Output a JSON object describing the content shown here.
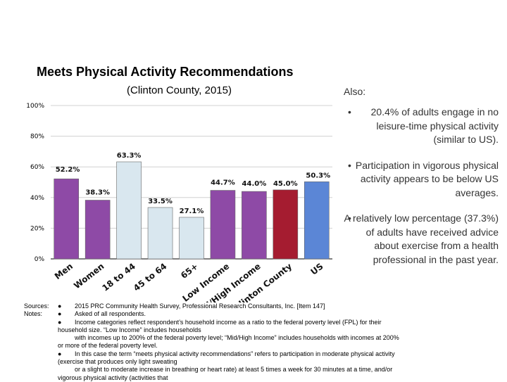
{
  "chart_data": {
    "type": "bar",
    "title": "Meets Physical Activity Recommendations",
    "subtitle": "(Clinton County, 2015)",
    "ylim": [
      0,
      100
    ],
    "yticks": [
      "0%",
      "20%",
      "40%",
      "60%",
      "80%",
      "100%"
    ],
    "grid": true,
    "categories": [
      "Men",
      "Women",
      "18 to 44",
      "45 to 64",
      "65+",
      "Low Income",
      "Mid/High Income",
      "Clinton County",
      "US"
    ],
    "values": [
      52.2,
      38.3,
      63.3,
      33.5,
      27.1,
      44.7,
      44.0,
      45.0,
      50.3
    ],
    "value_labels": [
      "52.2%",
      "38.3%",
      "63.3%",
      "33.5%",
      "27.1%",
      "44.7%",
      "44.0%",
      "45.0%",
      "50.3%"
    ],
    "colors": [
      "#8e4aa6",
      "#8e4aa6",
      "#d9e7ef",
      "#d9e7ef",
      "#d9e7ef",
      "#8e4aa6",
      "#8e4aa6",
      "#a51c30",
      "#5b86d6"
    ]
  },
  "also": {
    "heading": "Also:",
    "bullet_char": "•",
    "items": [
      "20.4% of adults engage in no leisure-time physical activity (similar to US).",
      "Participation in vigorous physical activity appears to be below US averages.",
      "A relatively low percentage (37.3%) of adults have received advice about exercise from a health professional in the past year."
    ]
  },
  "notes": {
    "sources_label": "Sources:",
    "notes_label": "Notes:",
    "dot": "●",
    "source_line": "2015 PRC Community Health Survey, Professional Research Consultants, Inc. [Item 147]",
    "note1": "Asked of all respondents.",
    "note2a": "Income categories reflect respondent’s household income as a ratio to the federal poverty level (FPL) for their",
    "note2b": "household size. “Low Income” includes households",
    "note2c": "with incomes up to 200% of the federal poverty level; “Mid/High Income” includes households with incomes at 200%",
    "note2d": "or more of the federal poverty level.",
    "note3a": "In this case the term “meets physical activity recommendations” refers to participation in moderate physical activity",
    "note3b": "(exercise that produces only light sweating",
    "note3c": "or a slight to moderate increase in breathing or heart rate) at least 5 times a week for 30 minutes at a time, and/or",
    "note3d": "vigorous physical activity (activities that"
  }
}
